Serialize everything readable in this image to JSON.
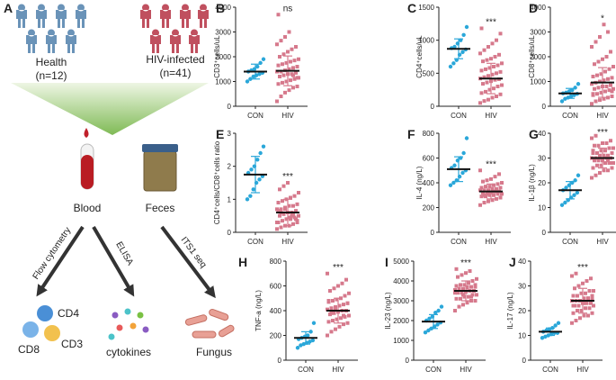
{
  "diagram": {
    "letter": "A",
    "groups": [
      {
        "label": "Health",
        "n": "(n=12)"
      },
      {
        "label": "HIV-infected",
        "n": "(n=41)"
      }
    ],
    "samples": [
      "Blood",
      "Feces"
    ],
    "methods": [
      "Flow cytometry",
      "ELISA",
      "ITS1 seq"
    ],
    "cells": [
      "CD4",
      "CD8",
      "CD3"
    ],
    "outputs": [
      "cytokines",
      "Fungus"
    ]
  },
  "chart_data": [
    {
      "type": "strip",
      "letter": "B",
      "ylabel": "CD3⁺cells/uL",
      "significance": "ns",
      "categories": [
        "CON",
        "HIV"
      ],
      "ylim": [
        0,
        4000
      ],
      "yticks": [
        0,
        1000,
        2000,
        3000,
        4000
      ],
      "groups": [
        {
          "color": "#2aa7d9",
          "marker": "circle",
          "mean": 1400,
          "sd": 300,
          "values": [
            1000,
            1100,
            1200,
            1250,
            1300,
            1350,
            1400,
            1450,
            1500,
            1600,
            1750,
            1900
          ]
        },
        {
          "color": "#d6798c",
          "marker": "square",
          "mean": 1430,
          "sd": 600,
          "values": [
            200,
            400,
            550,
            650,
            750,
            800,
            900,
            950,
            1000,
            1050,
            1100,
            1150,
            1200,
            1250,
            1300,
            1300,
            1350,
            1400,
            1400,
            1450,
            1500,
            1550,
            1600,
            1650,
            1700,
            1750,
            1800,
            1850,
            1900,
            2000,
            2100,
            2200,
            2300,
            2400,
            2500,
            2650,
            2800,
            3000,
            1250,
            1150,
            3700
          ]
        }
      ]
    },
    {
      "type": "strip",
      "letter": "C",
      "ylabel": "CD4⁺cells/uL",
      "significance": "***",
      "categories": [
        "CON",
        "HIV"
      ],
      "ylim": [
        0,
        1500
      ],
      "yticks": [
        0,
        500,
        1000,
        1500
      ],
      "groups": [
        {
          "color": "#2aa7d9",
          "marker": "circle",
          "mean": 870,
          "sd": 150,
          "values": [
            600,
            650,
            700,
            780,
            820,
            860,
            880,
            900,
            950,
            1000,
            1080,
            1200
          ]
        },
        {
          "color": "#d6798c",
          "marker": "square",
          "mean": 420,
          "sd": 230,
          "values": [
            50,
            80,
            100,
            130,
            150,
            180,
            200,
            220,
            250,
            270,
            300,
            320,
            340,
            360,
            380,
            400,
            410,
            420,
            440,
            460,
            480,
            500,
            520,
            540,
            560,
            580,
            600,
            620,
            650,
            680,
            700,
            720,
            750,
            780,
            800,
            850,
            900,
            950,
            1000,
            1100,
            1180
          ]
        }
      ]
    },
    {
      "type": "strip",
      "letter": "D",
      "ylabel": "CD8⁺cells/uL",
      "significance": "*",
      "categories": [
        "CON",
        "HIV"
      ],
      "ylim": [
        0,
        4000
      ],
      "yticks": [
        0,
        1000,
        2000,
        3000,
        4000
      ],
      "groups": [
        {
          "color": "#2aa7d9",
          "marker": "circle",
          "mean": 520,
          "sd": 200,
          "values": [
            200,
            300,
            350,
            400,
            450,
            500,
            520,
            550,
            600,
            650,
            750,
            900
          ]
        },
        {
          "color": "#d6798c",
          "marker": "square",
          "mean": 960,
          "sd": 600,
          "values": [
            100,
            200,
            250,
            300,
            350,
            400,
            450,
            500,
            550,
            600,
            650,
            700,
            700,
            750,
            800,
            800,
            850,
            900,
            950,
            1000,
            1050,
            1100,
            1150,
            1200,
            1250,
            1300,
            1400,
            1500,
            1600,
            1700,
            1800,
            1900,
            2000,
            2200,
            2400,
            2600,
            2800,
            3300,
            3000,
            600,
            500
          ]
        }
      ]
    },
    {
      "type": "strip",
      "letter": "E",
      "ylabel": "CD4⁺cells/CD8⁺cells ratio",
      "significance": "***",
      "categories": [
        "CON",
        "HIV"
      ],
      "ylim": [
        0,
        3
      ],
      "yticks": [
        0,
        1,
        2,
        3
      ],
      "groups": [
        {
          "color": "#2aa7d9",
          "marker": "circle",
          "mean": 1.75,
          "sd": 0.55,
          "values": [
            1.0,
            1.1,
            1.3,
            1.5,
            1.6,
            1.7,
            1.8,
            1.9,
            2.0,
            2.2,
            2.4,
            2.6
          ]
        },
        {
          "color": "#d6798c",
          "marker": "square",
          "mean": 0.6,
          "sd": 0.4,
          "values": [
            0.1,
            0.15,
            0.2,
            0.2,
            0.25,
            0.3,
            0.3,
            0.35,
            0.4,
            0.4,
            0.45,
            0.5,
            0.5,
            0.55,
            0.6,
            0.6,
            0.65,
            0.7,
            0.7,
            0.75,
            0.8,
            0.8,
            0.85,
            0.9,
            0.95,
            1.0,
            1.05,
            1.1,
            1.2,
            1.3,
            1.4,
            1.5,
            0.5,
            0.4,
            0.3,
            0.6,
            0.7,
            0.45,
            0.55,
            0.35,
            0.65
          ]
        }
      ]
    },
    {
      "type": "strip",
      "letter": "F",
      "ylabel": "IL-4 (ng/L)",
      "significance": "***",
      "categories": [
        "CON",
        "HIV"
      ],
      "ylim": [
        0,
        800
      ],
      "yticks": [
        0,
        200,
        400,
        600,
        800
      ],
      "groups": [
        {
          "color": "#2aa7d9",
          "marker": "circle",
          "mean": 510,
          "sd": 100,
          "values": [
            380,
            400,
            420,
            450,
            480,
            500,
            520,
            540,
            580,
            600,
            640,
            760
          ]
        },
        {
          "color": "#d6798c",
          "marker": "square",
          "mean": 330,
          "sd": 60,
          "values": [
            220,
            240,
            250,
            260,
            270,
            280,
            290,
            290,
            300,
            300,
            310,
            310,
            320,
            320,
            320,
            330,
            330,
            340,
            340,
            340,
            350,
            350,
            360,
            360,
            370,
            370,
            380,
            390,
            400,
            410,
            420,
            430,
            450,
            470,
            500,
            300,
            310,
            330,
            350,
            280,
            360
          ]
        }
      ]
    },
    {
      "type": "strip",
      "letter": "G",
      "ylabel": "IL-1β (ng/L)",
      "significance": "***",
      "categories": [
        "CON",
        "HIV"
      ],
      "ylim": [
        0,
        40
      ],
      "yticks": [
        0,
        10,
        20,
        30,
        40
      ],
      "groups": [
        {
          "color": "#2aa7d9",
          "marker": "circle",
          "mean": 17,
          "sd": 3.5,
          "values": [
            11,
            12,
            13,
            14,
            15,
            16,
            17,
            18,
            19,
            20,
            21,
            23
          ]
        },
        {
          "color": "#d6798c",
          "marker": "square",
          "mean": 30,
          "sd": 4,
          "values": [
            22,
            23,
            24,
            25,
            25,
            26,
            26,
            27,
            27,
            28,
            28,
            28,
            29,
            29,
            29,
            30,
            30,
            30,
            30,
            31,
            31,
            31,
            32,
            32,
            32,
            33,
            33,
            34,
            34,
            35,
            35,
            36,
            36,
            37,
            38,
            39,
            30,
            31,
            29,
            28,
            33
          ]
        }
      ]
    },
    {
      "type": "strip",
      "letter": "H",
      "ylabel": "TNF-a (ng/L)",
      "significance": "***",
      "categories": [
        "CON",
        "HIV"
      ],
      "ylim": [
        0,
        800
      ],
      "yticks": [
        0,
        200,
        400,
        600,
        800
      ],
      "groups": [
        {
          "color": "#2aa7d9",
          "marker": "circle",
          "mean": 180,
          "sd": 50,
          "values": [
            100,
            120,
            130,
            140,
            150,
            160,
            170,
            180,
            190,
            200,
            230,
            300
          ]
        },
        {
          "color": "#d6798c",
          "marker": "square",
          "mean": 400,
          "sd": 100,
          "values": [
            200,
            230,
            250,
            270,
            290,
            300,
            310,
            320,
            330,
            340,
            350,
            360,
            370,
            380,
            390,
            400,
            400,
            410,
            420,
            430,
            440,
            450,
            460,
            470,
            480,
            490,
            500,
            520,
            540,
            560,
            580,
            600,
            620,
            650,
            700,
            380,
            420,
            440,
            360,
            460,
            480
          ]
        }
      ]
    },
    {
      "type": "strip",
      "letter": "I",
      "ylabel": "IL-23 (ng/L)",
      "significance": "***",
      "categories": [
        "CON",
        "HIV"
      ],
      "ylim": [
        0,
        5000
      ],
      "yticks": [
        0,
        1000,
        2000,
        3000,
        4000,
        5000
      ],
      "groups": [
        {
          "color": "#2aa7d9",
          "marker": "circle",
          "mean": 1950,
          "sd": 350,
          "values": [
            1400,
            1500,
            1600,
            1700,
            1800,
            1900,
            2000,
            2100,
            2200,
            2400,
            2500,
            2700
          ]
        },
        {
          "color": "#d6798c",
          "marker": "square",
          "mean": 3500,
          "sd": 500,
          "values": [
            2500,
            2700,
            2800,
            2900,
            3000,
            3000,
            3100,
            3100,
            3200,
            3200,
            3300,
            3300,
            3400,
            3400,
            3450,
            3500,
            3500,
            3550,
            3600,
            3600,
            3650,
            3700,
            3700,
            3750,
            3800,
            3800,
            3900,
            4000,
            4100,
            4200,
            4300,
            4400,
            4500,
            3500,
            3400,
            3600,
            3300,
            3700,
            3200,
            3800,
            4600
          ]
        }
      ]
    },
    {
      "type": "strip",
      "letter": "J",
      "ylabel": "IL-17 (ng/L)",
      "significance": "***",
      "categories": [
        "CON",
        "HIV"
      ],
      "ylim": [
        0,
        40
      ],
      "yticks": [
        0,
        10,
        20,
        30,
        40
      ],
      "groups": [
        {
          "color": "#2aa7d9",
          "marker": "circle",
          "mean": 11.5,
          "sd": 1.5,
          "values": [
            9,
            9.5,
            10,
            10.5,
            11,
            11,
            11.5,
            12,
            12.5,
            13,
            14,
            15
          ]
        },
        {
          "color": "#d6798c",
          "marker": "square",
          "mean": 24,
          "sd": 5,
          "values": [
            15,
            16,
            17,
            18,
            18,
            19,
            19,
            20,
            20,
            21,
            21,
            22,
            22,
            22,
            23,
            23,
            23,
            24,
            24,
            24,
            25,
            25,
            25,
            26,
            26,
            27,
            27,
            28,
            28,
            29,
            30,
            31,
            32,
            33,
            34,
            35,
            24,
            23,
            25,
            26,
            22
          ]
        }
      ]
    }
  ]
}
